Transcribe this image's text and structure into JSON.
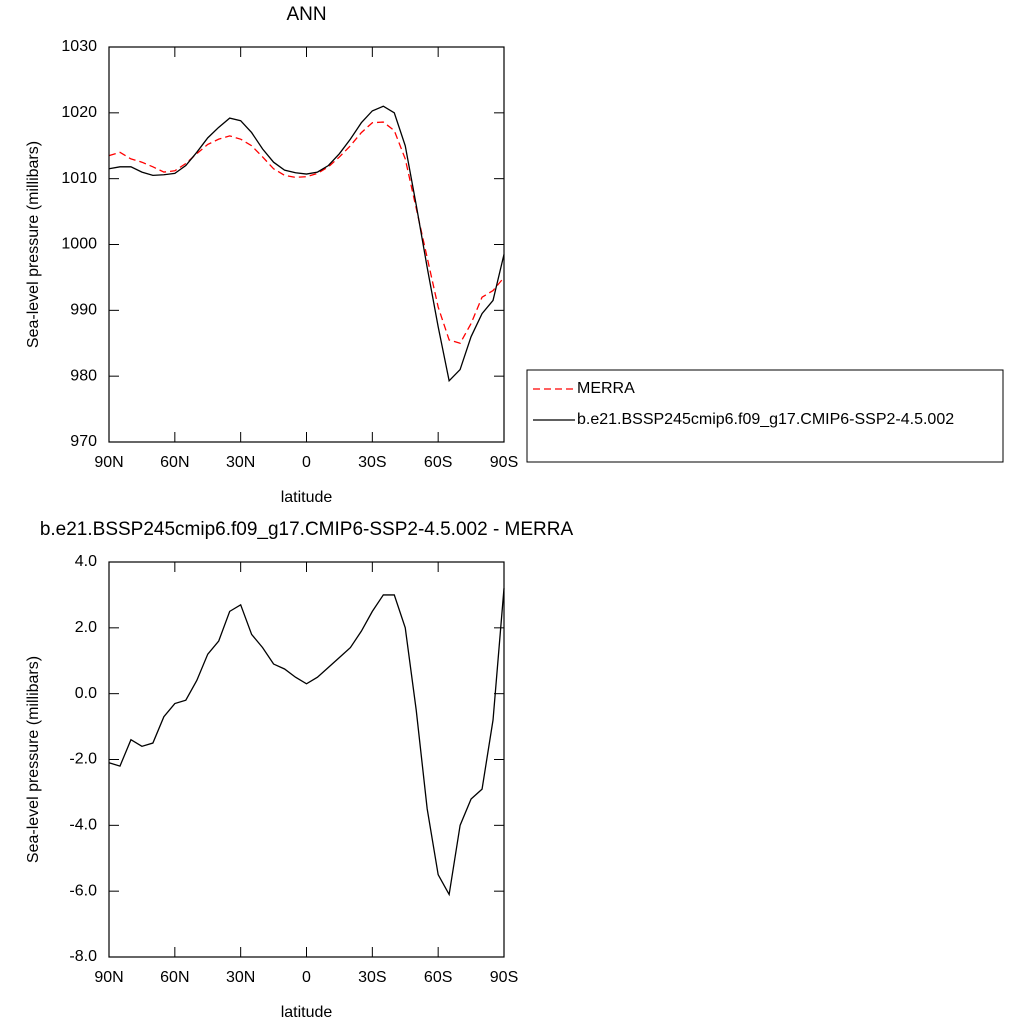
{
  "chart_data": [
    {
      "type": "line",
      "title": "ANN",
      "x_label": "latitude",
      "y_label": "Sea-level pressure (millibars)",
      "x": [
        90,
        85,
        80,
        75,
        70,
        65,
        60,
        55,
        50,
        45,
        40,
        35,
        30,
        25,
        20,
        15,
        10,
        5,
        0,
        -5,
        -10,
        -15,
        -20,
        -25,
        -30,
        -35,
        -40,
        -45,
        -50,
        -55,
        -60,
        -65,
        -70,
        -75,
        -80,
        -85,
        -90
      ],
      "xlim": [
        90,
        -90
      ],
      "xticks": [
        {
          "value": 90,
          "label": "90N"
        },
        {
          "value": 60,
          "label": "60N"
        },
        {
          "value": 30,
          "label": "30N"
        },
        0,
        {
          "value": -30,
          "label": "30S"
        },
        {
          "value": -60,
          "label": "60S"
        },
        {
          "value": -90,
          "label": "90S"
        }
      ],
      "ylim": [
        970,
        1030
      ],
      "yticks": [
        970,
        980,
        990,
        1000,
        1010,
        1020,
        1030
      ],
      "legend": "right",
      "series": [
        {
          "name": "MERRA",
          "color": "#ff0000",
          "line_style": "dashed",
          "values": [
            1013.5,
            1014.0,
            1013.0,
            1012.5,
            1011.8,
            1011.0,
            1011.2,
            1012.3,
            1013.8,
            1015.2,
            1016.0,
            1016.5,
            1016.0,
            1015.0,
            1013.3,
            1011.5,
            1010.5,
            1010.2,
            1010.3,
            1010.8,
            1011.8,
            1013.3,
            1015.0,
            1017.0,
            1018.5,
            1018.6,
            1017.3,
            1013.0,
            1005.5,
            998.0,
            990.5,
            985.5,
            985.0,
            988.0,
            992.0,
            993.0,
            995.0
          ]
        },
        {
          "name": "b.e21.BSSP245cmip6.f09_g17.CMIP6-SSP2-4.5.002",
          "color": "#000000",
          "line_style": "solid",
          "values": [
            1011.5,
            1011.8,
            1011.8,
            1011.0,
            1010.5,
            1010.6,
            1010.8,
            1012.0,
            1014.0,
            1016.2,
            1017.8,
            1019.2,
            1018.8,
            1017.0,
            1014.5,
            1012.5,
            1011.3,
            1010.9,
            1010.7,
            1011.0,
            1012.0,
            1013.8,
            1016.0,
            1018.5,
            1020.3,
            1021.0,
            1020.0,
            1015.0,
            1006.0,
            996.5,
            987.5,
            979.3,
            981.0,
            986.0,
            989.5,
            991.5,
            998.5
          ]
        }
      ]
    },
    {
      "type": "line",
      "title": "b.e21.BSSP245cmip6.f09_g17.CMIP6-SSP2-4.5.002 - MERRA",
      "x_label": "latitude",
      "y_label": "Sea-level pressure (millibars)",
      "x": [
        90,
        85,
        80,
        75,
        70,
        65,
        60,
        55,
        50,
        45,
        40,
        35,
        30,
        25,
        20,
        15,
        10,
        5,
        0,
        -5,
        -10,
        -15,
        -20,
        -25,
        -30,
        -35,
        -40,
        -45,
        -50,
        -55,
        -60,
        -65,
        -70,
        -75,
        -80,
        -85,
        -90
      ],
      "xlim": [
        90,
        -90
      ],
      "xticks": [
        {
          "value": 90,
          "label": "90N"
        },
        {
          "value": 60,
          "label": "60N"
        },
        {
          "value": 30,
          "label": "30N"
        },
        0,
        {
          "value": -30,
          "label": "30S"
        },
        {
          "value": -60,
          "label": "60S"
        },
        {
          "value": -90,
          "label": "90S"
        }
      ],
      "ylim": [
        -8,
        4
      ],
      "yticks": [
        {
          "value": -8,
          "label": "-8.0"
        },
        {
          "value": -6,
          "label": "-6.0"
        },
        {
          "value": -4,
          "label": "-4.0"
        },
        {
          "value": -2,
          "label": "-2.0"
        },
        {
          "value": 0,
          "label": "0.0"
        },
        {
          "value": 2,
          "label": "2.0"
        },
        {
          "value": 4,
          "label": "4.0"
        }
      ],
      "series": [
        {
          "color": "#000000",
          "line_style": "solid",
          "values": [
            -2.1,
            -2.2,
            -1.4,
            -1.6,
            -1.5,
            -0.7,
            -0.3,
            -0.2,
            0.4,
            1.2,
            1.6,
            2.5,
            2.7,
            1.8,
            1.4,
            0.9,
            0.75,
            0.5,
            0.3,
            0.5,
            0.8,
            1.1,
            1.4,
            1.9,
            2.5,
            3.0,
            3.0,
            2.0,
            -0.5,
            -3.5,
            -5.5,
            -6.1,
            -4.0,
            -3.2,
            -2.9,
            -0.8,
            3.2
          ]
        }
      ]
    }
  ]
}
